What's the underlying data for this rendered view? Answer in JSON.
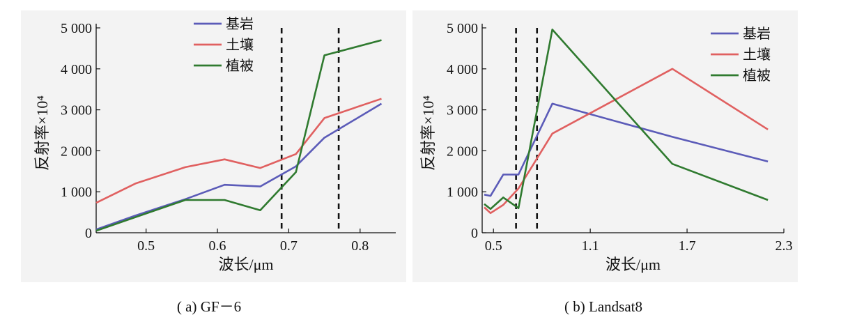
{
  "chart_data": [
    {
      "type": "line",
      "caption": "( a) GF－6",
      "xlabel": "波长/μm",
      "ylabel": "反射率×10⁴",
      "xlim": [
        0.43,
        0.85
      ],
      "ylim": [
        0,
        5000
      ],
      "x_ticks": [
        0.5,
        0.6,
        0.7,
        0.8
      ],
      "x_tick_labels": [
        "0.5",
        "0.6",
        "0.7",
        "0.8"
      ],
      "y_ticks": [
        0,
        1000,
        2000,
        3000,
        4000,
        5000
      ],
      "y_tick_labels": [
        "0",
        "1 000",
        "2 000",
        "3 000",
        "4 000",
        "5 000"
      ],
      "vlines": [
        0.69,
        0.77
      ],
      "legend_position": "top-center",
      "grid": false,
      "series": [
        {
          "name": "基岩",
          "color": "#5b5bb8",
          "points": [
            [
              0.43,
              80
            ],
            [
              0.485,
              420
            ],
            [
              0.555,
              820
            ],
            [
              0.61,
              1170
            ],
            [
              0.66,
              1130
            ],
            [
              0.71,
              1620
            ],
            [
              0.75,
              2320
            ],
            [
              0.83,
              3150
            ]
          ]
        },
        {
          "name": "土壤",
          "color": "#e06060",
          "points": [
            [
              0.43,
              730
            ],
            [
              0.485,
              1200
            ],
            [
              0.555,
              1600
            ],
            [
              0.61,
              1790
            ],
            [
              0.66,
              1580
            ],
            [
              0.71,
              1920
            ],
            [
              0.75,
              2800
            ],
            [
              0.83,
              3270
            ]
          ]
        },
        {
          "name": "植被",
          "color": "#2f7a2f",
          "points": [
            [
              0.43,
              50
            ],
            [
              0.485,
              380
            ],
            [
              0.555,
              800
            ],
            [
              0.61,
              800
            ],
            [
              0.66,
              550
            ],
            [
              0.71,
              1480
            ],
            [
              0.75,
              4330
            ],
            [
              0.83,
              4700
            ]
          ]
        }
      ]
    },
    {
      "type": "line",
      "caption": "( b) Landsat8",
      "xlabel": "波长/μm",
      "ylabel": "反射率×10⁴",
      "xlim": [
        0.43,
        2.3
      ],
      "ylim": [
        0,
        5000
      ],
      "x_ticks": [
        0.5,
        1.1,
        1.7,
        2.3
      ],
      "x_tick_labels": [
        "0.5",
        "1.1",
        "1.7",
        "2.3"
      ],
      "y_ticks": [
        0,
        1000,
        2000,
        3000,
        4000,
        5000
      ],
      "y_tick_labels": [
        "0",
        "1 000",
        "2 000",
        "3 000",
        "4 000",
        "5 000"
      ],
      "vlines": [
        0.64,
        0.77
      ],
      "legend_position": "top-right",
      "grid": false,
      "series": [
        {
          "name": "基岩",
          "color": "#5b5bb8",
          "points": [
            [
              0.443,
              930
            ],
            [
              0.482,
              900
            ],
            [
              0.561,
              1420
            ],
            [
              0.655,
              1420
            ],
            [
              0.865,
              3150
            ],
            [
              1.609,
              2340
            ],
            [
              2.201,
              1740
            ]
          ]
        },
        {
          "name": "土壤",
          "color": "#e06060",
          "points": [
            [
              0.443,
              620
            ],
            [
              0.482,
              480
            ],
            [
              0.561,
              680
            ],
            [
              0.655,
              1080
            ],
            [
              0.865,
              2420
            ],
            [
              1.609,
              4000
            ],
            [
              2.201,
              2520
            ]
          ]
        },
        {
          "name": "植被",
          "color": "#2f7a2f",
          "points": [
            [
              0.443,
              700
            ],
            [
              0.482,
              580
            ],
            [
              0.561,
              860
            ],
            [
              0.655,
              600
            ],
            [
              0.865,
              4960
            ],
            [
              1.609,
              1680
            ],
            [
              2.201,
              800
            ]
          ]
        }
      ]
    }
  ]
}
